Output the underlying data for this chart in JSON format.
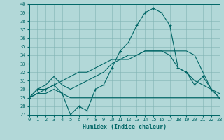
{
  "xlabel": "Humidex (Indice chaleur)",
  "x": [
    0,
    1,
    2,
    3,
    4,
    5,
    6,
    7,
    8,
    9,
    10,
    11,
    12,
    13,
    14,
    15,
    16,
    17,
    18,
    19,
    20,
    21,
    22,
    23
  ],
  "line_main": [
    29.0,
    30.0,
    30.0,
    30.5,
    29.5,
    27.0,
    28.0,
    27.5,
    30.0,
    30.5,
    32.5,
    34.5,
    35.5,
    37.5,
    39.0,
    39.5,
    39.0,
    37.5,
    32.5,
    32.0,
    30.5,
    31.5,
    30.0,
    29.0
  ],
  "line_upper": [
    29.0,
    30.0,
    30.5,
    31.5,
    30.5,
    30.0,
    30.5,
    31.0,
    31.5,
    32.0,
    33.0,
    33.5,
    33.5,
    34.0,
    34.5,
    34.5,
    34.5,
    34.5,
    34.5,
    34.5,
    34.0,
    32.0,
    30.0,
    29.0
  ],
  "line_lower": [
    29.0,
    29.5,
    29.5,
    30.0,
    29.5,
    29.0,
    29.0,
    29.0,
    29.0,
    29.0,
    29.0,
    29.0,
    29.0,
    29.0,
    29.0,
    29.0,
    29.0,
    29.0,
    29.0,
    29.0,
    29.0,
    29.0,
    29.0,
    29.0
  ],
  "line_diag": [
    29.0,
    29.5,
    30.0,
    30.5,
    31.0,
    31.5,
    32.0,
    32.0,
    32.5,
    33.0,
    33.5,
    33.5,
    34.0,
    34.0,
    34.5,
    34.5,
    34.5,
    34.0,
    32.5,
    32.0,
    31.0,
    30.5,
    30.0,
    29.5
  ],
  "line_color": "#006666",
  "bg_color": "#b2d8d8",
  "grid_color": "#80b3b3",
  "ylim": [
    27,
    40
  ],
  "xlim": [
    0,
    23
  ],
  "yticks": [
    27,
    28,
    29,
    30,
    31,
    32,
    33,
    34,
    35,
    36,
    37,
    38,
    39,
    40
  ],
  "xticks": [
    0,
    1,
    2,
    3,
    4,
    5,
    6,
    7,
    8,
    9,
    10,
    11,
    12,
    13,
    14,
    15,
    16,
    17,
    18,
    19,
    20,
    21,
    22,
    23
  ]
}
